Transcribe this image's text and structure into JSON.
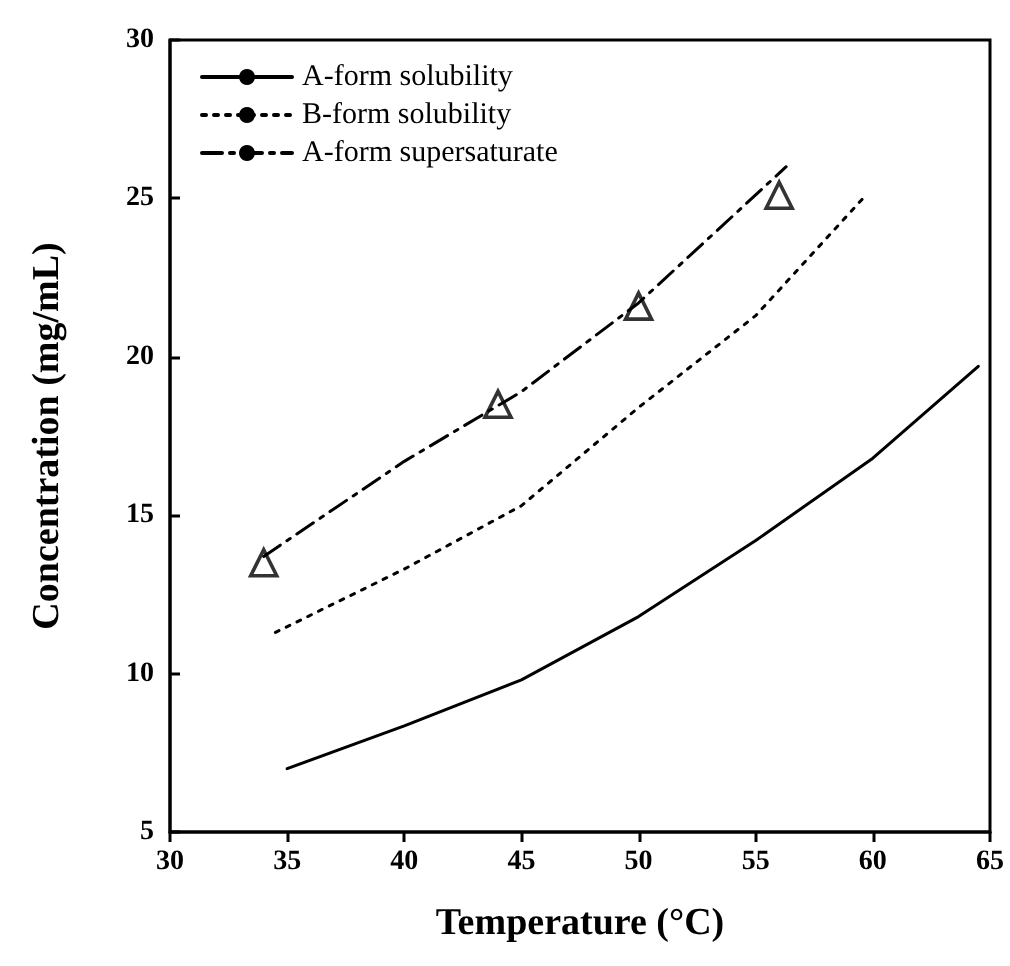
{
  "chart_data": {
    "type": "line",
    "xlabel": "Temperature (°C)",
    "ylabel": "Concentration (mg/mL)",
    "xlim": [
      30,
      65
    ],
    "xticks": [
      30,
      35,
      40,
      45,
      50,
      55,
      60,
      65
    ],
    "ylim": [
      5,
      30
    ],
    "yticks": [
      5,
      10,
      15,
      20,
      25,
      30
    ],
    "grid": false,
    "legend": "top left",
    "series": [
      {
        "name": "A-form solubility",
        "color": "#000000",
        "line_style": "solid",
        "marker": "none",
        "x": [
          35,
          40,
          45,
          50,
          55,
          60,
          64.5
        ],
        "values": [
          7.0,
          8.35,
          9.8,
          11.8,
          14.2,
          16.8,
          19.7
        ]
      },
      {
        "name": "B-form solubility",
        "color": "#000000",
        "line_style": "dotted",
        "marker": "none",
        "x": [
          34.5,
          40,
          45,
          50,
          55,
          59.7
        ],
        "values": [
          11.3,
          13.3,
          15.3,
          18.4,
          21.3,
          25.1
        ]
      },
      {
        "name": "A-form supersaturate",
        "color": "#000000",
        "line_style": "dashdot",
        "marker": "none",
        "x": [
          34,
          40,
          45,
          50,
          56.3
        ],
        "values": [
          13.7,
          16.7,
          18.9,
          21.7,
          26.0
        ]
      },
      {
        "type": "scatter",
        "color": "#000000",
        "marker": "triangle",
        "x": [
          34,
          44,
          50,
          56
        ],
        "values": [
          13.5,
          18.5,
          21.6,
          25.1
        ]
      }
    ]
  }
}
